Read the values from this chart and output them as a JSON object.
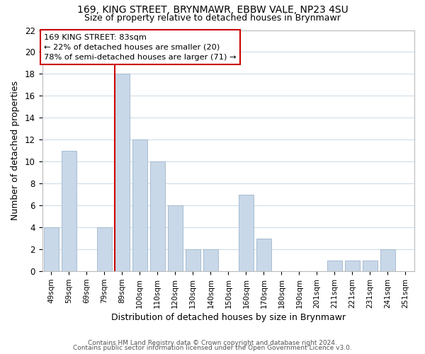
{
  "title1": "169, KING STREET, BRYNMAWR, EBBW VALE, NP23 4SU",
  "title2": "Size of property relative to detached houses in Brynmawr",
  "xlabel": "Distribution of detached houses by size in Brynmawr",
  "ylabel": "Number of detached properties",
  "categories": [
    "49sqm",
    "59sqm",
    "69sqm",
    "79sqm",
    "89sqm",
    "100sqm",
    "110sqm",
    "120sqm",
    "130sqm",
    "140sqm",
    "150sqm",
    "160sqm",
    "170sqm",
    "180sqm",
    "190sqm",
    "201sqm",
    "211sqm",
    "221sqm",
    "231sqm",
    "241sqm",
    "251sqm"
  ],
  "values": [
    4,
    11,
    0,
    4,
    18,
    12,
    10,
    6,
    2,
    2,
    0,
    7,
    3,
    0,
    0,
    0,
    1,
    1,
    1,
    2,
    0
  ],
  "bar_color": "#c8d8e8",
  "bar_edge_color": "#a8bcd0",
  "vline_index": 4,
  "vline_color": "#cc0000",
  "annotation_title": "169 KING STREET: 83sqm",
  "annotation_line1": "← 22% of detached houses are smaller (20)",
  "annotation_line2": "78% of semi-detached houses are larger (71) →",
  "ylim": [
    0,
    22
  ],
  "yticks": [
    0,
    2,
    4,
    6,
    8,
    10,
    12,
    14,
    16,
    18,
    20,
    22
  ],
  "footer1": "Contains HM Land Registry data © Crown copyright and database right 2024.",
  "footer2": "Contains public sector information licensed under the Open Government Licence v3.0.",
  "background_color": "#ffffff",
  "grid_color": "#d0dce8"
}
